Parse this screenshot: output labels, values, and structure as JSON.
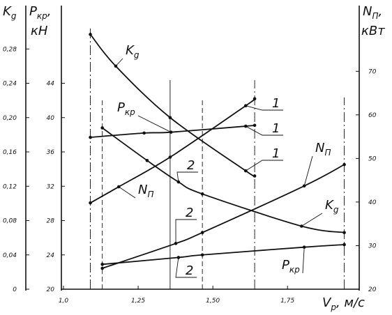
{
  "chart_data": {
    "type": "line",
    "kg_title": {
      "text": "K",
      "sub": "g"
    },
    "pkr_title": {
      "text": "P",
      "sub": "кр",
      "rest": ",",
      "line2": "кН"
    },
    "np_title": {
      "text": "N",
      "sub": "П",
      "rest": ",",
      "line2": "кВт"
    },
    "x_title": {
      "text": "V",
      "sub": "р",
      "rest": ", м/с"
    },
    "xlim": [
      0.993,
      1.99
    ],
    "xticks": [
      {
        "value": 1.0,
        "label": "1,0"
      },
      {
        "value": 1.25,
        "label": "1,25"
      },
      {
        "value": 1.5,
        "label": "1,50"
      },
      {
        "value": 1.75,
        "label": "1,75"
      }
    ],
    "ylim": [
      20,
      52
    ],
    "yticks": [
      20,
      24,
      28,
      32,
      36,
      40,
      44
    ],
    "y2lim": [
      20,
      83
    ],
    "y2ticks": [
      20,
      30,
      40,
      50,
      60,
      70
    ],
    "y3lim": [
      0,
      0.32
    ],
    "y3ticks": [
      0,
      {
        "value": 0.04,
        "label": "0,04"
      },
      {
        "value": 0.08,
        "label": "0,08"
      },
      {
        "value": 0.12,
        "label": "0,12"
      },
      {
        "value": 0.16,
        "label": "0,16"
      },
      {
        "value": 0.2,
        "label": "0,20"
      },
      {
        "value": 0.24,
        "label": "0,24"
      },
      {
        "value": 0.28,
        "label": "0,28"
      }
    ],
    "guides": [
      1.09,
      1.13,
      1.357,
      1.465,
      1.64,
      1.94
    ],
    "color": "#111111",
    "series": [
      {
        "axis": "y3",
        "x": [
          1.09,
          1.175,
          1.357,
          1.61,
          1.64
        ],
        "values": [
          0.297,
          0.26,
          0.2,
          0.138,
          0.132
        ]
      },
      {
        "axis": "y",
        "x": [
          1.09,
          1.27,
          1.36,
          1.61,
          1.64
        ],
        "values": [
          37.7,
          38.2,
          38.3,
          39.0,
          39.1
        ]
      },
      {
        "axis": "y2",
        "x": [
          1.09,
          1.185,
          1.357,
          1.61,
          1.64
        ],
        "values": [
          39.8,
          43.5,
          50.3,
          62.1,
          63.7
        ]
      },
      {
        "axis": "y3",
        "x": [
          1.13,
          1.28,
          1.385,
          1.465,
          1.797,
          1.94
        ],
        "values": [
          0.188,
          0.15,
          0.125,
          0.111,
          0.0735,
          0.066
        ]
      },
      {
        "axis": "y",
        "x": [
          1.13,
          1.385,
          1.465,
          1.806,
          1.94
        ],
        "values": [
          22.9,
          23.7,
          24.0,
          24.9,
          25.2
        ]
      },
      {
        "axis": "y2",
        "x": [
          1.13,
          1.376,
          1.465,
          1.806,
          1.94
        ],
        "values": [
          24.8,
          30.5,
          33.0,
          43.7,
          48.6
        ]
      }
    ],
    "annotations": [
      {
        "text": "K",
        "sub": "g"
      },
      {
        "text": "P",
        "sub": "кр"
      },
      {
        "text": "N",
        "sub": "П"
      },
      {
        "text": "1"
      },
      {
        "text": "1"
      },
      {
        "text": "1"
      },
      {
        "text": "2"
      },
      {
        "text": "2"
      },
      {
        "text": "2"
      },
      {
        "text": "N",
        "sub": "П"
      },
      {
        "text": "K",
        "sub": "g"
      },
      {
        "text": "P",
        "sub": "кр"
      }
    ]
  }
}
